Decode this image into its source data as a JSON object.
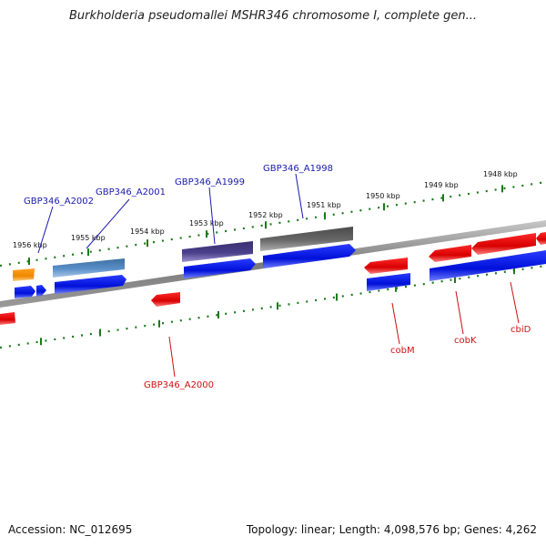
{
  "header": {
    "title": "Burkholderia pseudomallei MSHR346 chromosome I, complete gen..."
  },
  "footer": {
    "accession": "Accession: NC_012695",
    "topology": "Topology: linear; Length: 4,098,576 bp; Genes: 4,262"
  },
  "ruler": {
    "ticks": [
      "1956 kbp",
      "1955 kbp",
      "1954 kbp",
      "1953 kbp",
      "1952 kbp",
      "1951 kbp",
      "1950 kbp",
      "1949 kbp",
      "1948 kbp"
    ]
  },
  "gene_labels": {
    "gbp346_a2002": "GBP346_A2002",
    "gbp346_a2001": "GBP346_A2001",
    "gbp346_a1999": "GBP346_A1999",
    "gbp346_a1998": "GBP346_A1998",
    "gbp346_a2000": "GBP346_A2000",
    "cobm": "cobM",
    "cobk": "cobK",
    "cbid": "cbiD"
  },
  "colors": {
    "label_blue": "#1a1aaa",
    "label_red": "#cc1111",
    "ruler_green": "#1a7a1a",
    "backbone": "#808080"
  }
}
